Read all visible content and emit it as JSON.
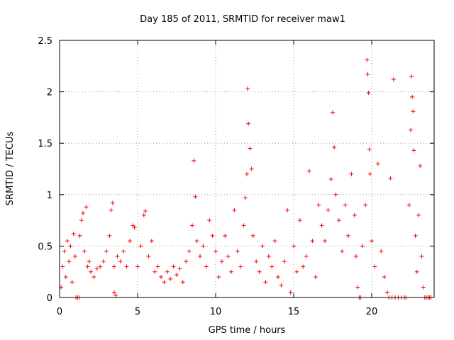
{
  "chart_data": {
    "type": "scatter",
    "title": "Day 185 of 2011, SRMTID for receiver maw1",
    "xlabel": "GPS time / hours",
    "ylabel": "SRMTID / TECUs",
    "xlim": [
      0,
      24
    ],
    "ylim": [
      0,
      2.5
    ],
    "grid": true,
    "marker": "+",
    "color": "#ff0000",
    "x_ticks": [
      {
        "value": 0,
        "label": "0"
      },
      {
        "value": 5,
        "label": "5"
      },
      {
        "value": 10,
        "label": "10"
      },
      {
        "value": 15,
        "label": "15"
      },
      {
        "value": 20,
        "label": "20"
      }
    ],
    "y_ticks": [
      {
        "value": 0,
        "label": "0"
      },
      {
        "value": 0.5,
        "label": "0.5"
      },
      {
        "value": 1,
        "label": "1"
      },
      {
        "value": 1.5,
        "label": "1.5"
      },
      {
        "value": 2,
        "label": "2"
      },
      {
        "value": 2.5,
        "label": "2.5"
      }
    ],
    "series": [
      {
        "name": "SRMTID",
        "points": [
          [
            0.1,
            0.1
          ],
          [
            0.2,
            0.3
          ],
          [
            0.3,
            0.45
          ],
          [
            0.4,
            0.2
          ],
          [
            0.5,
            0.55
          ],
          [
            0.6,
            0.35
          ],
          [
            0.7,
            0.5
          ],
          [
            0.8,
            0.15
          ],
          [
            0.9,
            0.62
          ],
          [
            1.0,
            0.4
          ],
          [
            1.05,
            0.0
          ],
          [
            1.15,
            0.0
          ],
          [
            1.25,
            0.0
          ],
          [
            1.3,
            0.6
          ],
          [
            1.4,
            0.75
          ],
          [
            1.5,
            0.82
          ],
          [
            1.6,
            0.45
          ],
          [
            1.7,
            0.88
          ],
          [
            1.8,
            0.3
          ],
          [
            1.9,
            0.35
          ],
          [
            2.0,
            0.25
          ],
          [
            2.2,
            0.2
          ],
          [
            2.4,
            0.28
          ],
          [
            2.6,
            0.3
          ],
          [
            2.8,
            0.35
          ],
          [
            3.0,
            0.45
          ],
          [
            3.2,
            0.6
          ],
          [
            3.3,
            0.85
          ],
          [
            3.4,
            0.92
          ],
          [
            3.5,
            0.3
          ],
          [
            3.5,
            0.05
          ],
          [
            3.6,
            0.02
          ],
          [
            3.7,
            0.4
          ],
          [
            3.9,
            0.35
          ],
          [
            4.1,
            0.45
          ],
          [
            4.3,
            0.3
          ],
          [
            4.5,
            0.55
          ],
          [
            4.7,
            0.7
          ],
          [
            4.8,
            0.68
          ],
          [
            5.0,
            0.3
          ],
          [
            5.2,
            0.5
          ],
          [
            5.4,
            0.8
          ],
          [
            5.5,
            0.84
          ],
          [
            5.7,
            0.4
          ],
          [
            5.9,
            0.55
          ],
          [
            6.1,
            0.25
          ],
          [
            6.3,
            0.3
          ],
          [
            6.5,
            0.2
          ],
          [
            6.7,
            0.15
          ],
          [
            6.9,
            0.25
          ],
          [
            7.1,
            0.18
          ],
          [
            7.3,
            0.3
          ],
          [
            7.5,
            0.22
          ],
          [
            7.7,
            0.28
          ],
          [
            7.9,
            0.15
          ],
          [
            8.1,
            0.35
          ],
          [
            8.3,
            0.45
          ],
          [
            8.5,
            0.7
          ],
          [
            8.6,
            1.33
          ],
          [
            8.7,
            0.98
          ],
          [
            8.8,
            0.55
          ],
          [
            9.0,
            0.4
          ],
          [
            9.2,
            0.5
          ],
          [
            9.4,
            0.3
          ],
          [
            9.6,
            0.75
          ],
          [
            9.8,
            0.6
          ],
          [
            10.0,
            0.45
          ],
          [
            10.2,
            0.2
          ],
          [
            10.4,
            0.35
          ],
          [
            10.6,
            0.6
          ],
          [
            10.8,
            0.4
          ],
          [
            11.0,
            0.25
          ],
          [
            11.2,
            0.85
          ],
          [
            11.4,
            0.45
          ],
          [
            11.6,
            0.3
          ],
          [
            11.8,
            0.7
          ],
          [
            11.9,
            0.97
          ],
          [
            12.0,
            1.2
          ],
          [
            12.05,
            2.03
          ],
          [
            12.1,
            1.69
          ],
          [
            12.2,
            1.45
          ],
          [
            12.3,
            1.25
          ],
          [
            12.4,
            0.6
          ],
          [
            12.6,
            0.35
          ],
          [
            12.8,
            0.25
          ],
          [
            13.0,
            0.5
          ],
          [
            13.2,
            0.15
          ],
          [
            13.4,
            0.4
          ],
          [
            13.6,
            0.3
          ],
          [
            13.8,
            0.55
          ],
          [
            14.0,
            0.2
          ],
          [
            14.2,
            0.12
          ],
          [
            14.4,
            0.35
          ],
          [
            14.6,
            0.85
          ],
          [
            14.8,
            0.05
          ],
          [
            15.0,
            0.5
          ],
          [
            15.2,
            0.25
          ],
          [
            15.4,
            0.75
          ],
          [
            15.6,
            0.3
          ],
          [
            15.8,
            0.4
          ],
          [
            16.0,
            1.23
          ],
          [
            16.2,
            0.55
          ],
          [
            16.4,
            0.2
          ],
          [
            16.6,
            0.9
          ],
          [
            16.8,
            0.7
          ],
          [
            17.0,
            0.55
          ],
          [
            17.2,
            0.85
          ],
          [
            17.4,
            1.15
          ],
          [
            17.5,
            1.8
          ],
          [
            17.6,
            1.46
          ],
          [
            17.7,
            1.0
          ],
          [
            17.9,
            0.75
          ],
          [
            18.1,
            0.45
          ],
          [
            18.3,
            0.9
          ],
          [
            18.5,
            0.6
          ],
          [
            18.7,
            1.2
          ],
          [
            18.9,
            0.8
          ],
          [
            19.0,
            0.4
          ],
          [
            19.1,
            0.1
          ],
          [
            19.2,
            0.0
          ],
          [
            19.3,
            0.0
          ],
          [
            19.4,
            0.5
          ],
          [
            19.6,
            0.9
          ],
          [
            19.7,
            2.31
          ],
          [
            19.75,
            2.17
          ],
          [
            19.8,
            1.99
          ],
          [
            19.85,
            1.44
          ],
          [
            19.9,
            1.2
          ],
          [
            20.0,
            0.55
          ],
          [
            20.2,
            0.3
          ],
          [
            20.4,
            1.3
          ],
          [
            20.6,
            0.45
          ],
          [
            20.8,
            0.2
          ],
          [
            21.0,
            0.05
          ],
          [
            21.1,
            0.0
          ],
          [
            21.2,
            1.16
          ],
          [
            21.3,
            0.0
          ],
          [
            21.4,
            2.12
          ],
          [
            21.5,
            0.0
          ],
          [
            21.7,
            0.0
          ],
          [
            21.9,
            0.0
          ],
          [
            22.1,
            0.0
          ],
          [
            22.2,
            0.0
          ],
          [
            22.4,
            0.9
          ],
          [
            22.5,
            1.63
          ],
          [
            22.55,
            2.15
          ],
          [
            22.6,
            1.95
          ],
          [
            22.65,
            1.81
          ],
          [
            22.7,
            1.43
          ],
          [
            22.8,
            0.6
          ],
          [
            22.9,
            0.25
          ],
          [
            23.0,
            0.8
          ],
          [
            23.1,
            1.28
          ],
          [
            23.2,
            0.4
          ],
          [
            23.3,
            0.1
          ],
          [
            23.4,
            0.0
          ],
          [
            23.5,
            0.0
          ],
          [
            23.6,
            0.0
          ],
          [
            23.7,
            0.0
          ],
          [
            23.8,
            0.0
          ]
        ]
      }
    ]
  }
}
